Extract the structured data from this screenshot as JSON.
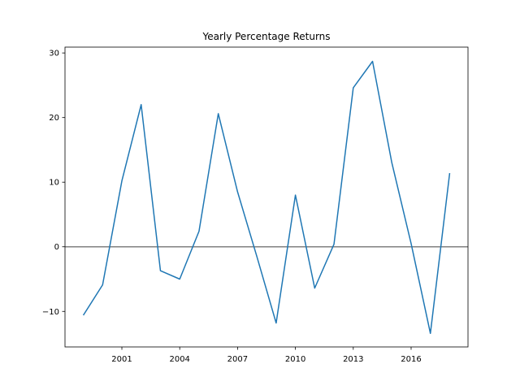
{
  "chart_data": {
    "type": "line",
    "title": "Yearly Percentage Returns",
    "xlabel": "",
    "ylabel": "",
    "x": [
      1999,
      2000,
      2001,
      2002,
      2003,
      2004,
      2005,
      2006,
      2007,
      2008,
      2009,
      2010,
      2011,
      2012,
      2013,
      2014,
      2015,
      2016,
      2017,
      2018
    ],
    "series": [
      {
        "values": [
          -10.6,
          -5.9,
          10.2,
          22.0,
          -3.7,
          -5.0,
          2.4,
          20.6,
          8.5,
          -1.5,
          -11.8,
          8.0,
          -6.4,
          0.4,
          24.6,
          28.7,
          13.0,
          0.5,
          -13.4,
          11.4
        ],
        "color": "#1f77b4"
      }
    ],
    "xlim": [
      1998.05,
      2018.95
    ],
    "ylim": [
      -15.5,
      30.9
    ],
    "xticks": [
      2001,
      2004,
      2007,
      2010,
      2013,
      2016
    ],
    "xtick_labels": [
      "2001",
      "2004",
      "2007",
      "2010",
      "2013",
      "2016"
    ],
    "yticks": [
      -10,
      0,
      10,
      20,
      30
    ],
    "ytick_labels": [
      "−10",
      "0",
      "10",
      "20",
      "30"
    ],
    "reference_line": {
      "y": 0,
      "color": "#808080"
    },
    "grid": false,
    "legend": false
  }
}
